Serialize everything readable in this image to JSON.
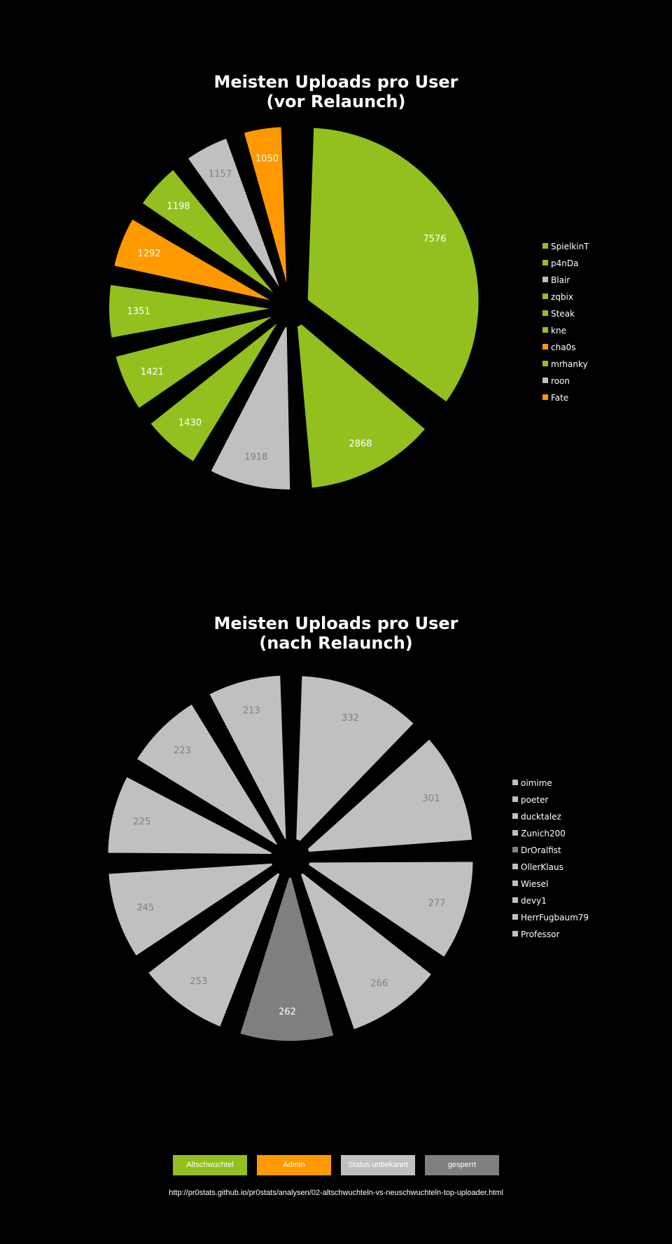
{
  "colors": {
    "background": "#000000",
    "Altschwuchtel": "#93c01f",
    "Admin": "#ff9900",
    "Status unbekannt": "#c0c0c0",
    "gesperrt": "#7f7f7f"
  },
  "chart_data": [
    {
      "type": "pie",
      "title_lines": [
        "Meisten Uploads pro User",
        "(vor Relaunch)"
      ],
      "categories": [
        "SpielkinT",
        "p4nDa",
        "Blair",
        "zqbix",
        "Steak",
        "kne",
        "cha0s",
        "mrhanky",
        "roon",
        "Fate"
      ],
      "values": [
        7576,
        2868,
        1918,
        1430,
        1421,
        1351,
        1292,
        1198,
        1157,
        1050
      ],
      "status": [
        "Altschwuchtel",
        "Altschwuchtel",
        "Status unbekannt",
        "Altschwuchtel",
        "Altschwuchtel",
        "Altschwuchtel",
        "Admin",
        "Altschwuchtel",
        "Status unbekannt",
        "Admin"
      ],
      "legend_position": "right"
    },
    {
      "type": "pie",
      "title_lines": [
        "Meisten Uploads pro User",
        "(nach Relaunch)"
      ],
      "categories": [
        "oimime",
        "poeter",
        "ducktalez",
        "Zunich200",
        "DrOralfist",
        "OllerKlaus",
        "Wiesel",
        "devy1",
        "HerrFugbaum79",
        "Professor"
      ],
      "values": [
        332,
        301,
        277,
        266,
        262,
        253,
        245,
        225,
        223,
        213
      ],
      "status": [
        "Status unbekannt",
        "Status unbekannt",
        "Status unbekannt",
        "Status unbekannt",
        "gesperrt",
        "Status unbekannt",
        "Status unbekannt",
        "Status unbekannt",
        "Status unbekannt",
        "Status unbekannt"
      ],
      "legend_position": "right"
    }
  ],
  "status_legend": [
    {
      "label": "Altschwuchtel",
      "color": "#93c01f"
    },
    {
      "label": "Admin",
      "color": "#ff9900"
    },
    {
      "label": "Status unbekannt",
      "color": "#c0c0c0"
    },
    {
      "label": "gesperrt",
      "color": "#7f7f7f"
    }
  ],
  "footer": {
    "url": "http://pr0stats.github.io/pr0stats/analysen/02-altschwuchteln-vs-neuschwuchteln-top-uploader.html"
  }
}
